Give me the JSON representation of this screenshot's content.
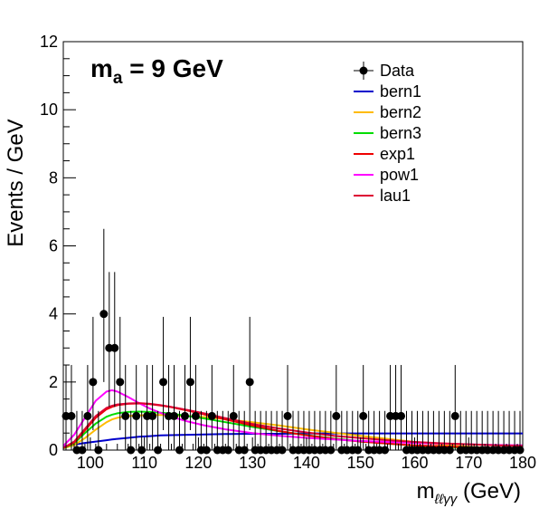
{
  "chart_data": {
    "type": "scatter",
    "title": "",
    "annotation": {
      "main": "m",
      "sub": "a",
      "rest": " = 9 GeV"
    },
    "xlabel": {
      "main": "m",
      "sub": "ℓℓγγ",
      "unit": "(GeV)"
    },
    "ylabel": "Events / GeV",
    "xlim": [
      95,
      180
    ],
    "ylim": [
      0,
      12
    ],
    "x_ticks": [
      100,
      110,
      120,
      130,
      140,
      150,
      160,
      170,
      180
    ],
    "y_ticks": [
      0,
      2,
      4,
      6,
      8,
      10,
      12
    ],
    "grid": false,
    "legend_position": "top-right",
    "data": {
      "name": "Data",
      "x": [
        95.5,
        96.5,
        97.5,
        98.5,
        99.5,
        100.5,
        101.5,
        102.5,
        103.5,
        104.5,
        105.5,
        106.5,
        107.5,
        108.5,
        109.5,
        110.5,
        111.5,
        112.5,
        113.5,
        114.5,
        115.5,
        116.5,
        117.5,
        118.5,
        119.5,
        120.5,
        121.5,
        122.5,
        123.5,
        124.5,
        125.5,
        126.5,
        127.5,
        128.5,
        129.5,
        130.5,
        131.5,
        132.5,
        133.5,
        134.5,
        135.5,
        136.5,
        137.5,
        138.5,
        139.5,
        140.5,
        141.5,
        142.5,
        143.5,
        144.5,
        145.5,
        146.5,
        147.5,
        148.5,
        149.5,
        150.5,
        151.5,
        152.5,
        153.5,
        154.5,
        155.5,
        156.5,
        157.5,
        158.5,
        159.5,
        160.5,
        161.5,
        162.5,
        163.5,
        164.5,
        165.5,
        166.5,
        167.5,
        168.5,
        169.5,
        170.5,
        171.5,
        172.5,
        173.5,
        174.5,
        175.5,
        176.5,
        177.5,
        178.5,
        179.5
      ],
      "y": [
        1,
        1,
        0,
        0,
        1,
        2,
        0,
        4,
        3,
        3,
        2,
        1,
        0,
        1,
        0,
        1,
        1,
        0,
        2,
        1,
        1,
        0,
        1,
        2,
        1,
        0,
        0,
        1,
        0,
        0,
        0,
        1,
        0,
        0,
        2,
        0,
        0,
        0,
        0,
        0,
        0,
        1,
        0,
        0,
        0,
        0,
        0,
        0,
        0,
        0,
        1,
        0,
        0,
        0,
        0,
        1,
        0,
        0,
        0,
        0,
        1,
        1,
        1,
        0,
        0,
        0,
        0,
        0,
        0,
        0,
        0,
        0,
        1,
        0,
        0,
        0,
        0,
        0,
        0,
        0,
        0,
        0,
        0,
        0,
        0
      ]
    },
    "series": [
      {
        "name": "bern1",
        "color": "#0000cc"
      },
      {
        "name": "bern2",
        "color": "#ffbb00"
      },
      {
        "name": "bern3",
        "color": "#00dd00"
      },
      {
        "name": "exp1",
        "color": "#ee0000"
      },
      {
        "name": "pow1",
        "color": "#ff00ff"
      },
      {
        "name": "lau1",
        "color": "#dd0033"
      }
    ],
    "curves": {
      "x": [
        95,
        97,
        99,
        101,
        103,
        104,
        105,
        107,
        109,
        111,
        113,
        115,
        118,
        121,
        125,
        130,
        135,
        140,
        145,
        150,
        155,
        160,
        165,
        170,
        175,
        180
      ],
      "bern1": [
        0.1,
        0.16,
        0.21,
        0.25,
        0.29,
        0.31,
        0.33,
        0.36,
        0.39,
        0.41,
        0.43,
        0.44,
        0.45,
        0.46,
        0.47,
        0.48,
        0.48,
        0.49,
        0.49,
        0.49,
        0.49,
        0.49,
        0.49,
        0.49,
        0.49,
        0.49
      ],
      "bern2": [
        0.05,
        0.15,
        0.35,
        0.6,
        0.82,
        0.9,
        0.95,
        1.0,
        1.02,
        1.03,
        1.03,
        1.02,
        1.0,
        0.97,
        0.91,
        0.82,
        0.72,
        0.61,
        0.51,
        0.42,
        0.33,
        0.24,
        0.16,
        0.1,
        0.05,
        0.02
      ],
      "bern3": [
        0.05,
        0.2,
        0.5,
        0.78,
        0.98,
        1.04,
        1.08,
        1.12,
        1.13,
        1.12,
        1.1,
        1.07,
        1.0,
        0.93,
        0.82,
        0.68,
        0.55,
        0.44,
        0.34,
        0.26,
        0.19,
        0.13,
        0.09,
        0.06,
        0.04,
        0.02
      ],
      "exp1": [
        0.06,
        0.22,
        0.58,
        0.95,
        1.2,
        1.27,
        1.32,
        1.36,
        1.37,
        1.35,
        1.31,
        1.26,
        1.16,
        1.05,
        0.9,
        0.72,
        0.56,
        0.43,
        0.33,
        0.25,
        0.19,
        0.14,
        0.11,
        0.08,
        0.06,
        0.05
      ],
      "pow1": [
        0.12,
        0.45,
        0.95,
        1.45,
        1.72,
        1.76,
        1.72,
        1.56,
        1.38,
        1.22,
        1.09,
        0.98,
        0.84,
        0.73,
        0.61,
        0.5,
        0.42,
        0.36,
        0.31,
        0.27,
        0.24,
        0.21,
        0.19,
        0.17,
        0.15,
        0.14
      ],
      "lau1": [
        0.06,
        0.25,
        0.62,
        1.0,
        1.24,
        1.3,
        1.34,
        1.37,
        1.38,
        1.36,
        1.32,
        1.27,
        1.18,
        1.08,
        0.94,
        0.77,
        0.63,
        0.52,
        0.42,
        0.35,
        0.29,
        0.24,
        0.2,
        0.17,
        0.14,
        0.12
      ]
    }
  }
}
